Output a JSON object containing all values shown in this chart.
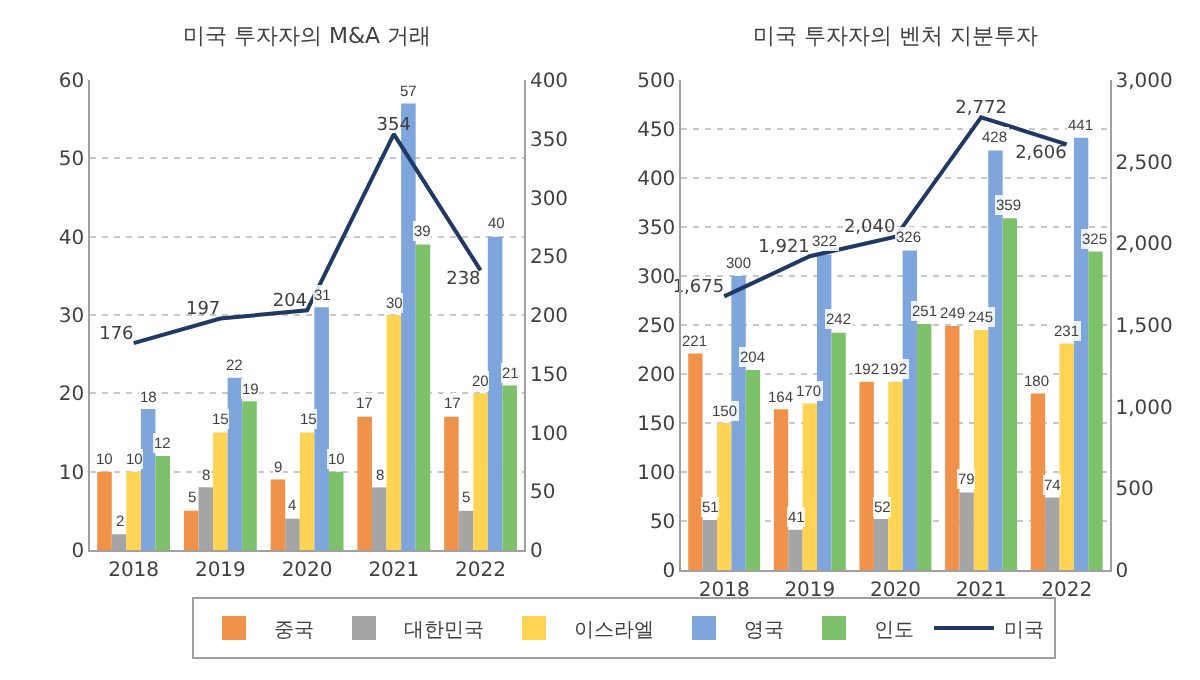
{
  "chart_data": [
    {
      "type": "bar",
      "title": "미국 투자자의 M&A 거래",
      "categories": [
        "2018",
        "2019",
        "2020",
        "2021",
        "2022"
      ],
      "series": [
        {
          "name": "중국",
          "color": "#f0924a",
          "values": [
            10,
            5,
            9,
            17,
            17
          ]
        },
        {
          "name": "대한민국",
          "color": "#a5a5a5",
          "values": [
            2,
            8,
            4,
            8,
            5
          ]
        },
        {
          "name": "이스라엘",
          "color": "#ffd454",
          "values": [
            10,
            15,
            15,
            30,
            20
          ]
        },
        {
          "name": "영국",
          "color": "#7ea6dc",
          "values": [
            18,
            22,
            31,
            57,
            40
          ]
        },
        {
          "name": "인도",
          "color": "#7dc26a",
          "values": [
            12,
            19,
            10,
            39,
            21
          ]
        },
        {
          "name": "미국",
          "color": "#1f3864",
          "type": "line",
          "axis": "y2",
          "values": [
            176,
            197,
            204,
            354,
            238
          ]
        }
      ],
      "ylim": [
        0,
        60
      ],
      "yticks": [
        0,
        10,
        20,
        30,
        40,
        50,
        60
      ],
      "y2lim": [
        0,
        400
      ],
      "y2ticks": [
        0,
        50,
        100,
        150,
        200,
        250,
        300,
        350,
        400
      ],
      "grid": "y",
      "legend": "bottom",
      "data_labels": true
    },
    {
      "type": "bar",
      "title": "미국 투자자의 벤처 지분투자",
      "categories": [
        "2018",
        "2019",
        "2020",
        "2021",
        "2022"
      ],
      "series": [
        {
          "color": "#f0924a",
          "values": [
            221,
            164,
            192,
            249,
            180
          ]
        },
        {
          "color": "#a5a5a5",
          "values": [
            51,
            41,
            52,
            79,
            74
          ]
        },
        {
          "color": "#ffd454",
          "values": [
            150,
            170,
            192,
            245,
            231
          ]
        },
        {
          "color": "#7ea6dc",
          "values": [
            300,
            322,
            326,
            428,
            441
          ]
        },
        {
          "color": "#7dc26a",
          "values": [
            204,
            242,
            251,
            359,
            325
          ]
        },
        {
          "color": "#1f3864",
          "type": "line",
          "axis": "y2",
          "values": [
            1675,
            1921,
            2040,
            2772,
            2606
          ],
          "value_labels": [
            "1,675",
            "1,921",
            "2,040",
            "2,772",
            "2,606"
          ]
        }
      ],
      "ylim": [
        0,
        500
      ],
      "yticks": [
        0,
        50,
        100,
        150,
        200,
        250,
        300,
        350,
        400,
        450,
        500
      ],
      "y2lim": [
        0,
        3000
      ],
      "y2ticks": [
        0,
        500,
        {
          "value": 1000,
          "label": "1,000"
        },
        {
          "value": 1500,
          "label": "1,500"
        },
        {
          "value": 2000,
          "label": "2,000"
        },
        {
          "value": 2500,
          "label": "2,500"
        },
        {
          "value": 3000,
          "label": "3,000"
        }
      ],
      "grid": "y",
      "legend": false,
      "data_labels": true
    }
  ]
}
